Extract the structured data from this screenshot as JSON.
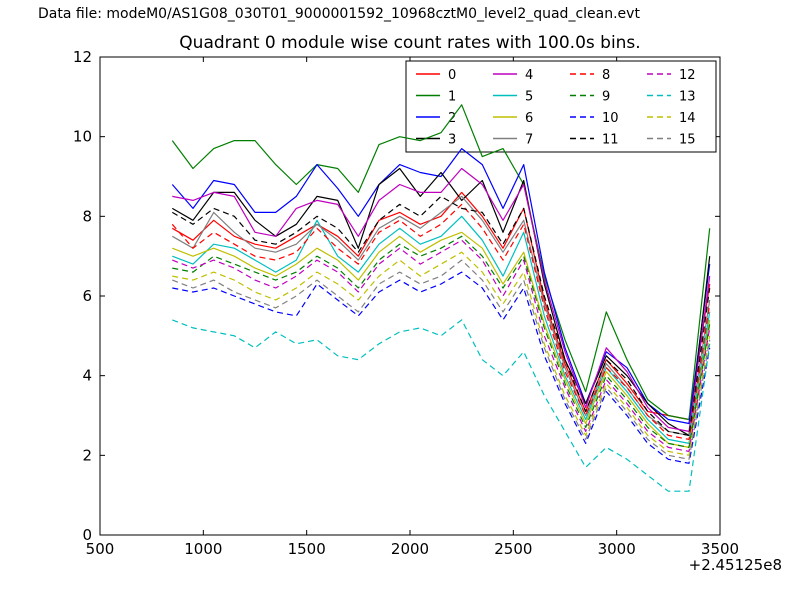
{
  "header": {
    "data_file_label": "Data file: modeM0/AS1G08_030T01_9000001592_10968cztM0_level2_quad_clean.evt"
  },
  "chart_data": {
    "type": "line",
    "title": "Quadrant 0 module wise count rates with 100.0s bins.",
    "xlabel": "",
    "ylabel": "",
    "x_offset_label": "+2.45125e8",
    "xlim": [
      500,
      3500
    ],
    "ylim": [
      0,
      12
    ],
    "x_ticks": [
      500,
      1000,
      1500,
      2000,
      2500,
      3000,
      3500
    ],
    "y_ticks": [
      0,
      2,
      4,
      6,
      8,
      10,
      12
    ],
    "grid": false,
    "legend": {
      "position": "upper right",
      "columns": 4,
      "order": "column-major"
    },
    "x": [
      850,
      950,
      1050,
      1150,
      1250,
      1350,
      1450,
      1550,
      1650,
      1750,
      1850,
      1950,
      2050,
      2150,
      2250,
      2350,
      2450,
      2550,
      2650,
      2750,
      2850,
      2950,
      3050,
      3150,
      3250,
      3350,
      3450
    ],
    "series": [
      {
        "name": "0",
        "color": "#ff0000",
        "style": "solid",
        "values": [
          7.7,
          7.4,
          7.9,
          7.5,
          7.3,
          7.2,
          7.5,
          7.8,
          7.5,
          7.0,
          7.9,
          8.1,
          7.8,
          8.0,
          8.6,
          8.0,
          7.2,
          8.2,
          5.9,
          4.3,
          3.1,
          4.4,
          3.8,
          3.1,
          3.0,
          2.9,
          6.3
        ]
      },
      {
        "name": "1",
        "color": "#007f00",
        "style": "solid",
        "values": [
          9.9,
          9.2,
          9.7,
          9.9,
          9.9,
          9.3,
          8.8,
          9.3,
          9.2,
          8.6,
          9.8,
          10.0,
          9.9,
          10.1,
          10.8,
          9.5,
          9.7,
          8.8,
          6.5,
          4.9,
          3.6,
          5.6,
          4.4,
          3.4,
          3.0,
          2.9,
          7.7
        ]
      },
      {
        "name": "2",
        "color": "#0000ff",
        "style": "solid",
        "values": [
          8.8,
          8.2,
          8.9,
          8.8,
          8.1,
          8.1,
          8.5,
          9.3,
          8.7,
          8.0,
          8.8,
          9.3,
          9.1,
          9.0,
          9.7,
          9.3,
          8.2,
          9.3,
          6.6,
          4.7,
          3.3,
          4.6,
          4.2,
          3.3,
          2.9,
          2.8,
          6.8
        ]
      },
      {
        "name": "3",
        "color": "#000000",
        "style": "solid",
        "values": [
          8.2,
          7.9,
          8.6,
          8.6,
          7.9,
          7.5,
          7.8,
          8.5,
          8.4,
          7.2,
          8.8,
          9.2,
          8.5,
          9.1,
          8.4,
          8.9,
          7.6,
          8.9,
          6.3,
          4.4,
          3.3,
          4.5,
          4.0,
          3.3,
          2.8,
          2.5,
          7.0
        ]
      },
      {
        "name": "4",
        "color": "#bf00bf",
        "style": "solid",
        "values": [
          8.5,
          8.4,
          8.6,
          8.5,
          7.6,
          7.5,
          8.2,
          8.4,
          8.3,
          7.5,
          8.4,
          8.8,
          8.6,
          8.6,
          9.2,
          8.8,
          7.9,
          8.8,
          6.4,
          4.6,
          3.2,
          4.7,
          4.1,
          3.2,
          2.7,
          2.6,
          6.5
        ]
      },
      {
        "name": "5",
        "color": "#00bfbf",
        "style": "solid",
        "values": [
          7.0,
          6.8,
          7.3,
          7.2,
          6.9,
          6.6,
          6.9,
          7.9,
          7.0,
          6.6,
          7.3,
          7.7,
          7.3,
          7.5,
          8.0,
          7.4,
          6.5,
          7.6,
          5.5,
          4.0,
          2.9,
          4.2,
          3.6,
          2.9,
          2.4,
          2.3,
          5.6
        ]
      },
      {
        "name": "6",
        "color": "#bfbf00",
        "style": "solid",
        "values": [
          7.2,
          7.0,
          7.2,
          7.0,
          6.7,
          6.5,
          6.8,
          7.2,
          6.9,
          6.4,
          7.1,
          7.5,
          7.1,
          7.4,
          7.6,
          7.2,
          6.3,
          7.1,
          5.3,
          3.9,
          2.8,
          4.1,
          3.5,
          2.8,
          2.3,
          2.2,
          5.4
        ]
      },
      {
        "name": "7",
        "color": "#808080",
        "style": "solid",
        "values": [
          7.5,
          7.2,
          8.1,
          7.6,
          7.2,
          7.1,
          7.3,
          7.8,
          7.4,
          6.9,
          7.7,
          8.0,
          7.7,
          8.1,
          8.5,
          7.9,
          7.1,
          7.9,
          5.8,
          4.2,
          3.0,
          4.3,
          3.7,
          3.0,
          2.6,
          2.5,
          5.9
        ]
      },
      {
        "name": "8",
        "color": "#ff0000",
        "style": "dashed",
        "values": [
          7.8,
          7.2,
          7.6,
          7.3,
          7.0,
          6.9,
          7.1,
          7.7,
          7.2,
          6.8,
          7.6,
          7.9,
          7.5,
          7.8,
          8.3,
          7.7,
          6.9,
          7.8,
          5.7,
          4.1,
          3.0,
          4.2,
          3.7,
          3.0,
          2.5,
          2.4,
          5.8
        ]
      },
      {
        "name": "9",
        "color": "#007f00",
        "style": "dashed",
        "values": [
          6.7,
          6.6,
          7.0,
          6.8,
          6.6,
          6.4,
          6.6,
          7.0,
          6.7,
          6.2,
          6.9,
          7.3,
          7.0,
          7.2,
          7.5,
          7.0,
          6.2,
          7.0,
          5.2,
          3.8,
          2.7,
          4.0,
          3.4,
          2.7,
          2.3,
          2.2,
          5.3
        ]
      },
      {
        "name": "10",
        "color": "#0000ff",
        "style": "dashed",
        "values": [
          6.2,
          6.1,
          6.2,
          6.0,
          5.8,
          5.6,
          5.5,
          6.3,
          5.9,
          5.5,
          6.1,
          6.4,
          6.1,
          6.3,
          6.6,
          6.2,
          5.4,
          6.2,
          4.5,
          3.3,
          2.3,
          3.6,
          3.0,
          2.3,
          1.9,
          1.8,
          4.7
        ]
      },
      {
        "name": "11",
        "color": "#000000",
        "style": "dashed",
        "values": [
          8.1,
          7.8,
          8.2,
          8.0,
          7.4,
          7.3,
          7.6,
          8.0,
          7.7,
          7.1,
          7.9,
          8.3,
          8.0,
          8.5,
          8.2,
          8.1,
          7.3,
          8.2,
          6.0,
          4.4,
          3.1,
          4.4,
          3.9,
          3.1,
          2.6,
          2.5,
          6.2
        ]
      },
      {
        "name": "12",
        "color": "#bf00bf",
        "style": "dashed",
        "values": [
          6.9,
          6.7,
          6.9,
          6.7,
          6.4,
          6.2,
          6.5,
          6.9,
          6.6,
          6.1,
          6.8,
          7.2,
          6.8,
          7.1,
          7.4,
          6.9,
          6.0,
          6.9,
          5.0,
          3.7,
          2.6,
          3.9,
          3.3,
          2.6,
          2.2,
          2.1,
          5.2
        ]
      },
      {
        "name": "13",
        "color": "#00bfbf",
        "style": "dashed",
        "values": [
          5.4,
          5.2,
          5.1,
          5.0,
          4.7,
          5.1,
          4.8,
          4.9,
          4.5,
          4.4,
          4.8,
          5.1,
          5.2,
          5.0,
          5.4,
          4.4,
          4.0,
          4.6,
          3.5,
          2.6,
          1.7,
          2.2,
          1.9,
          1.5,
          1.1,
          1.1,
          4.8
        ]
      },
      {
        "name": "14",
        "color": "#bfbf00",
        "style": "dashed",
        "values": [
          6.5,
          6.4,
          6.6,
          6.4,
          6.1,
          5.9,
          6.2,
          6.6,
          6.3,
          5.9,
          6.5,
          6.9,
          6.5,
          6.8,
          7.1,
          6.6,
          5.8,
          6.6,
          4.8,
          3.5,
          2.5,
          3.8,
          3.2,
          2.5,
          2.1,
          2.0,
          5.0
        ]
      },
      {
        "name": "15",
        "color": "#808080",
        "style": "dashed",
        "values": [
          6.4,
          6.2,
          6.4,
          6.1,
          5.9,
          5.7,
          6.0,
          6.4,
          6.0,
          5.6,
          6.3,
          6.6,
          6.3,
          6.5,
          6.9,
          6.4,
          5.6,
          6.4,
          4.7,
          3.4,
          2.4,
          3.7,
          3.1,
          2.4,
          2.0,
          1.9,
          4.9
        ]
      }
    ]
  }
}
